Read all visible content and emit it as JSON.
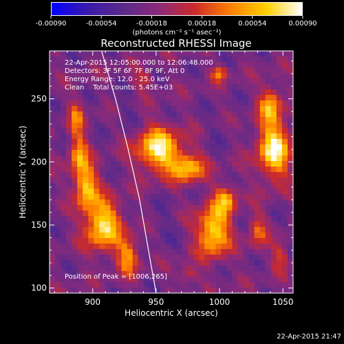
{
  "colors": {
    "scale_stops": [
      "#0000ff",
      "#3a1aaa",
      "#5a2a8a",
      "#8a2a7a",
      "#cc2a2a",
      "#ff8000",
      "#ffd000",
      "#ffffff"
    ],
    "limb_line": "#ffffff",
    "axis": "#ffffff",
    "background": "#000000"
  },
  "timestamp": "22-Apr-2015 21:47",
  "chart_data": {
    "type": "heatmap",
    "title": "Reconstructed RHESSI Image",
    "xlabel": "Heliocentric X (arcsec)",
    "ylabel": "Heliocentric Y (arcsec)",
    "xlim": [
      866,
      1058
    ],
    "ylim": [
      96,
      288
    ],
    "xticks": [
      900,
      950,
      1000,
      1050
    ],
    "yticks": [
      100,
      150,
      200,
      250
    ],
    "colorbar": {
      "min": -0.0009,
      "max": 0.0009,
      "ticks": [
        "-0.00090",
        "-0.00054",
        "-0.00018",
        "0.00018",
        "0.00054",
        "0.00090"
      ],
      "unit_label": "(photons cm⁻² s⁻¹ asec⁻²)"
    },
    "annotations": {
      "time_range": "22-Apr-2015 12:05:00.000 to 12:06:48.000",
      "detectors": "Detectors: 3F 5F 6F 7F 8F 9F, Att 0",
      "energy_range": "Energy Range: 12.0 - 25.0 keV",
      "method_counts": "Clean    Total counts: 5.45E+03",
      "peak": "Position of Peak = [1006,265]"
    },
    "peak_position": [
      1006,
      265
    ],
    "sources": [
      {
        "x": 908,
        "y": 150,
        "sx": 10,
        "sy": 14,
        "value": 0.00085
      },
      {
        "x": 895,
        "y": 180,
        "sx": 6,
        "sy": 12,
        "value": 0.00075
      },
      {
        "x": 889,
        "y": 205,
        "sx": 5,
        "sy": 12,
        "value": 0.0006
      },
      {
        "x": 887,
        "y": 235,
        "sx": 4,
        "sy": 10,
        "value": 0.00045
      },
      {
        "x": 928,
        "y": 125,
        "sx": 6,
        "sy": 10,
        "value": 0.0006
      },
      {
        "x": 952,
        "y": 210,
        "sx": 12,
        "sy": 12,
        "value": 0.0009
      },
      {
        "x": 975,
        "y": 195,
        "sx": 9,
        "sy": 8,
        "value": 0.0007
      },
      {
        "x": 995,
        "y": 145,
        "sx": 9,
        "sy": 14,
        "value": 0.00085
      },
      {
        "x": 1005,
        "y": 170,
        "sx": 6,
        "sy": 8,
        "value": 0.0006
      },
      {
        "x": 1043,
        "y": 210,
        "sx": 9,
        "sy": 16,
        "value": 0.0009
      },
      {
        "x": 1040,
        "y": 245,
        "sx": 6,
        "sy": 10,
        "value": 0.0006
      },
      {
        "x": 1030,
        "y": 145,
        "sx": 5,
        "sy": 10,
        "value": 0.0004
      },
      {
        "x": 1048,
        "y": 125,
        "sx": 5,
        "sy": 8,
        "value": 0.00035
      },
      {
        "x": 1000,
        "y": 270,
        "sx": 4,
        "sy": 4,
        "value": 0.00055
      },
      {
        "x": 975,
        "y": 110,
        "sx": 5,
        "sy": 5,
        "value": 0.00035
      },
      {
        "x": 940,
        "y": 265,
        "sx": 6,
        "sy": 5,
        "value": 0.0003
      }
    ],
    "limb": [
      [
        907,
        288
      ],
      [
        918,
        250
      ],
      [
        928,
        210
      ],
      [
        937,
        170
      ],
      [
        944,
        130
      ],
      [
        950,
        96
      ]
    ]
  }
}
